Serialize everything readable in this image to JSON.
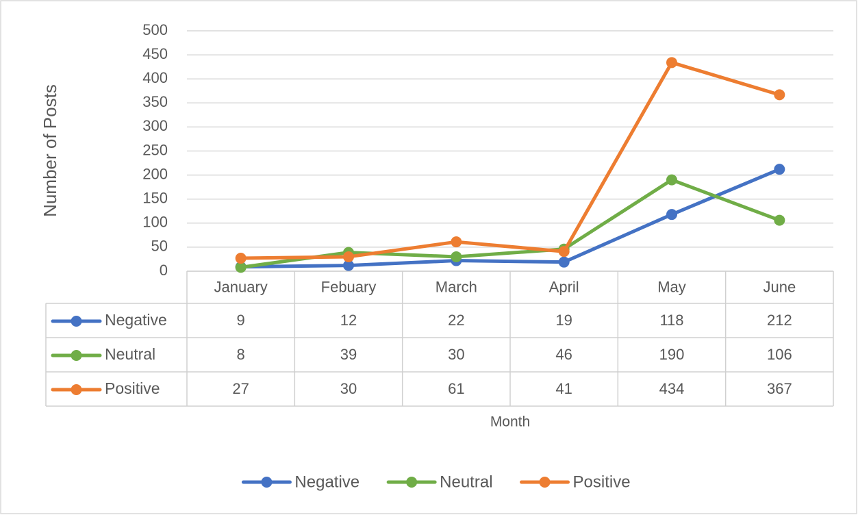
{
  "chart_data": {
    "type": "line",
    "y_label": "Number of Posts",
    "x_label": "Month",
    "categories": [
      "January",
      "Febuary",
      "March",
      "April",
      "May",
      "June"
    ],
    "series": [
      {
        "name": "Negative",
        "color": "#4472c4",
        "values": [
          9,
          12,
          22,
          19,
          118,
          212
        ]
      },
      {
        "name": "Neutral",
        "color": "#70ad47",
        "values": [
          8,
          39,
          30,
          46,
          190,
          106
        ]
      },
      {
        "name": "Positive",
        "color": "#ed7d31",
        "values": [
          27,
          30,
          61,
          41,
          434,
          367
        ]
      }
    ],
    "ylim": [
      0,
      500
    ],
    "yticks": [
      0,
      50,
      100,
      150,
      200,
      250,
      300,
      350,
      400,
      450,
      500
    ],
    "grid": true,
    "legend": "bottom",
    "data_table": true
  }
}
